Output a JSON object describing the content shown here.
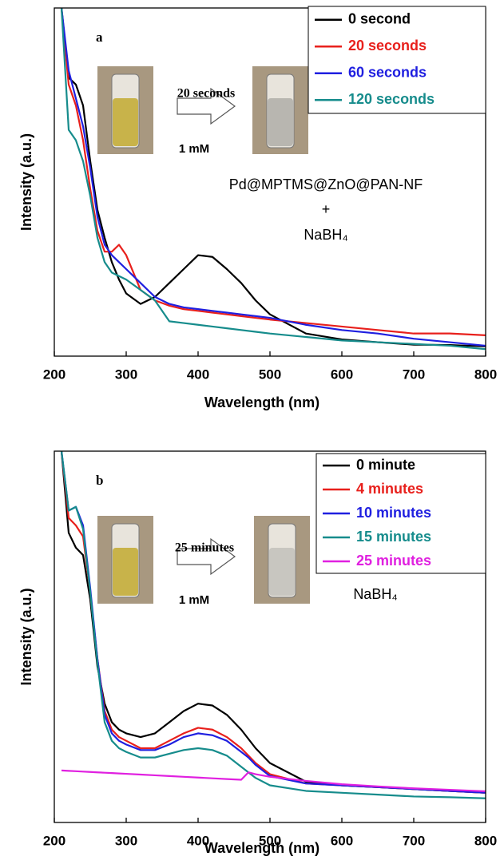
{
  "chart_data": [
    {
      "type": "line",
      "panel_label": "a",
      "xlabel": "Wavelength (nm)",
      "ylabel": "Intensity (a.u.)",
      "xlim": [
        200,
        800
      ],
      "xticks": [
        200,
        300,
        400,
        500,
        600,
        700,
        800
      ],
      "ylim": [
        0,
        100
      ],
      "legend": "upper right",
      "annotations": [
        "20 seconds",
        "1 mM",
        "Pd@MPTMS@ZnO@PAN-NF",
        "+",
        "NaBH₄"
      ],
      "x": [
        210,
        220,
        230,
        240,
        250,
        260,
        270,
        280,
        290,
        300,
        320,
        340,
        360,
        380,
        400,
        420,
        440,
        460,
        480,
        500,
        550,
        600,
        650,
        700,
        750,
        800
      ],
      "series": [
        {
          "name": "0 second",
          "color": "#000000",
          "values": [
            100,
            80,
            78,
            72,
            56,
            42,
            34,
            27,
            22,
            18,
            15,
            17,
            21,
            25,
            29,
            28.5,
            25,
            21,
            16,
            12,
            6.5,
            4.8,
            4,
            3.3,
            3.2,
            2.8
          ]
        },
        {
          "name": "20 seconds",
          "color": "#e8201c",
          "values": [
            100,
            78,
            72,
            62,
            48,
            36,
            30,
            30,
            32,
            29,
            19,
            16,
            14.5,
            13.5,
            13,
            12.5,
            12,
            11.5,
            11,
            10.5,
            9.5,
            8.5,
            7.5,
            6.5,
            6.5,
            6
          ]
        },
        {
          "name": "60 seconds",
          "color": "#1f1fe0",
          "values": [
            100,
            82,
            74,
            66,
            54,
            40,
            32,
            29,
            27,
            25,
            21,
            17,
            15,
            14,
            13.5,
            13,
            12.5,
            12,
            11.5,
            11,
            9,
            7.5,
            6.5,
            5,
            4,
            3
          ]
        },
        {
          "name": "120 seconds",
          "color": "#168c8c",
          "values": [
            100,
            65,
            62,
            56,
            46,
            34,
            27,
            24,
            23,
            22,
            19,
            16,
            10,
            9.5,
            9,
            8.5,
            8,
            7.5,
            7,
            6.5,
            5.5,
            4.5,
            4,
            3.5,
            3,
            2
          ]
        }
      ]
    },
    {
      "type": "line",
      "panel_label": "b",
      "xlabel": "Wavelength (nm)",
      "ylabel": "Intensity (a.u.)",
      "xlim": [
        200,
        800
      ],
      "xticks": [
        200,
        300,
        400,
        500,
        600,
        700,
        800
      ],
      "ylim": [
        0,
        100
      ],
      "legend": "upper right",
      "annotations": [
        "25 minutes",
        "1 mM",
        "NaBH₄"
      ],
      "x": [
        210,
        220,
        230,
        240,
        250,
        260,
        270,
        280,
        290,
        300,
        320,
        340,
        360,
        380,
        400,
        420,
        440,
        460,
        470,
        480,
        500,
        550,
        600,
        650,
        700,
        750,
        800
      ],
      "series": [
        {
          "name": "0 minute",
          "color": "#000000",
          "values": [
            100,
            78,
            74,
            72,
            60,
            42,
            32,
            27,
            25,
            24,
            23,
            24,
            27,
            30,
            32,
            31.5,
            29,
            25,
            22.5,
            20,
            16,
            11,
            10,
            9.5,
            9,
            8.5,
            8
          ]
        },
        {
          "name": "4 minutes",
          "color": "#e8201c",
          "values": [
            100,
            82,
            80,
            77,
            62,
            44,
            30,
            25,
            23,
            22,
            20,
            20,
            22,
            24,
            25.5,
            25,
            23,
            20,
            18,
            16,
            13,
            10.5,
            10,
            9.5,
            9,
            8.5,
            8
          ]
        },
        {
          "name": "10 minutes",
          "color": "#1f1fe0",
          "values": [
            100,
            84,
            85,
            80,
            63,
            44,
            29,
            24,
            22,
            21,
            19.5,
            19.5,
            21,
            23,
            24,
            23.5,
            22,
            19,
            17.5,
            15.5,
            12.5,
            10.5,
            10,
            9.5,
            9,
            8.5,
            8
          ]
        },
        {
          "name": "15 minutes",
          "color": "#168c8c",
          "values": [
            100,
            84,
            85,
            79,
            62,
            43,
            27,
            22,
            20,
            19,
            17.5,
            17.5,
            18.5,
            19.5,
            20,
            19.5,
            18,
            15,
            13.5,
            12,
            10,
            8.5,
            8,
            7.5,
            7,
            6.8,
            6.5
          ]
        },
        {
          "name": "25 minutes",
          "color": "#e020e0",
          "values": [
            14,
            13.9,
            13.8,
            13.7,
            13.6,
            13.5,
            13.4,
            13.3,
            13.2,
            13.1,
            12.9,
            12.7,
            12.5,
            12.3,
            12.1,
            11.9,
            11.7,
            11.5,
            13.5,
            13,
            12.3,
            11.2,
            10.3,
            9.7,
            9.2,
            8.8,
            8.4
          ]
        }
      ]
    }
  ]
}
